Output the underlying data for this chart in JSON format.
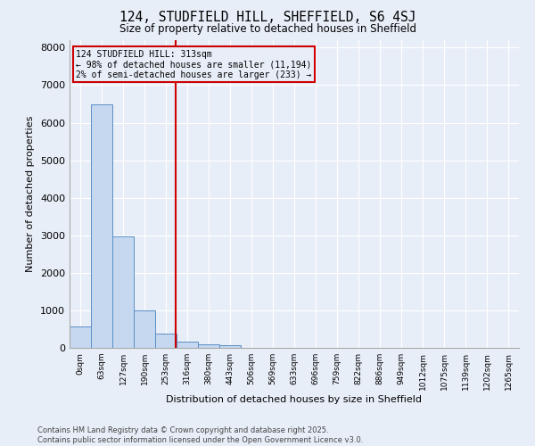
{
  "title_line1": "124, STUDFIELD HILL, SHEFFIELD, S6 4SJ",
  "title_line2": "Size of property relative to detached houses in Sheffield",
  "xlabel": "Distribution of detached houses by size in Sheffield",
  "ylabel": "Number of detached properties",
  "bar_labels": [
    "0sqm",
    "63sqm",
    "127sqm",
    "190sqm",
    "253sqm",
    "316sqm",
    "380sqm",
    "443sqm",
    "506sqm",
    "569sqm",
    "633sqm",
    "696sqm",
    "759sqm",
    "822sqm",
    "886sqm",
    "949sqm",
    "1012sqm",
    "1075sqm",
    "1139sqm",
    "1202sqm",
    "1265sqm"
  ],
  "bar_values": [
    580,
    6480,
    2980,
    1000,
    380,
    160,
    100,
    70,
    0,
    0,
    0,
    0,
    0,
    0,
    0,
    0,
    0,
    0,
    0,
    0,
    0
  ],
  "bar_color": "#c5d8f0",
  "bar_edge_color": "#5b8ec4",
  "ylim": [
    0,
    8200
  ],
  "yticks": [
    0,
    1000,
    2000,
    3000,
    4000,
    5000,
    6000,
    7000,
    8000
  ],
  "vline_x": 4.96,
  "vline_color": "#cc0000",
  "annotation_title": "124 STUDFIELD HILL: 313sqm",
  "annotation_line1": "← 98% of detached houses are smaller (11,194)",
  "annotation_line2": "2% of semi-detached houses are larger (233) →",
  "annotation_box_color": "#cc0000",
  "background_color": "#e8eef8",
  "grid_color": "#ffffff",
  "footnote_line1": "Contains HM Land Registry data © Crown copyright and database right 2025.",
  "footnote_line2": "Contains public sector information licensed under the Open Government Licence v3.0."
}
